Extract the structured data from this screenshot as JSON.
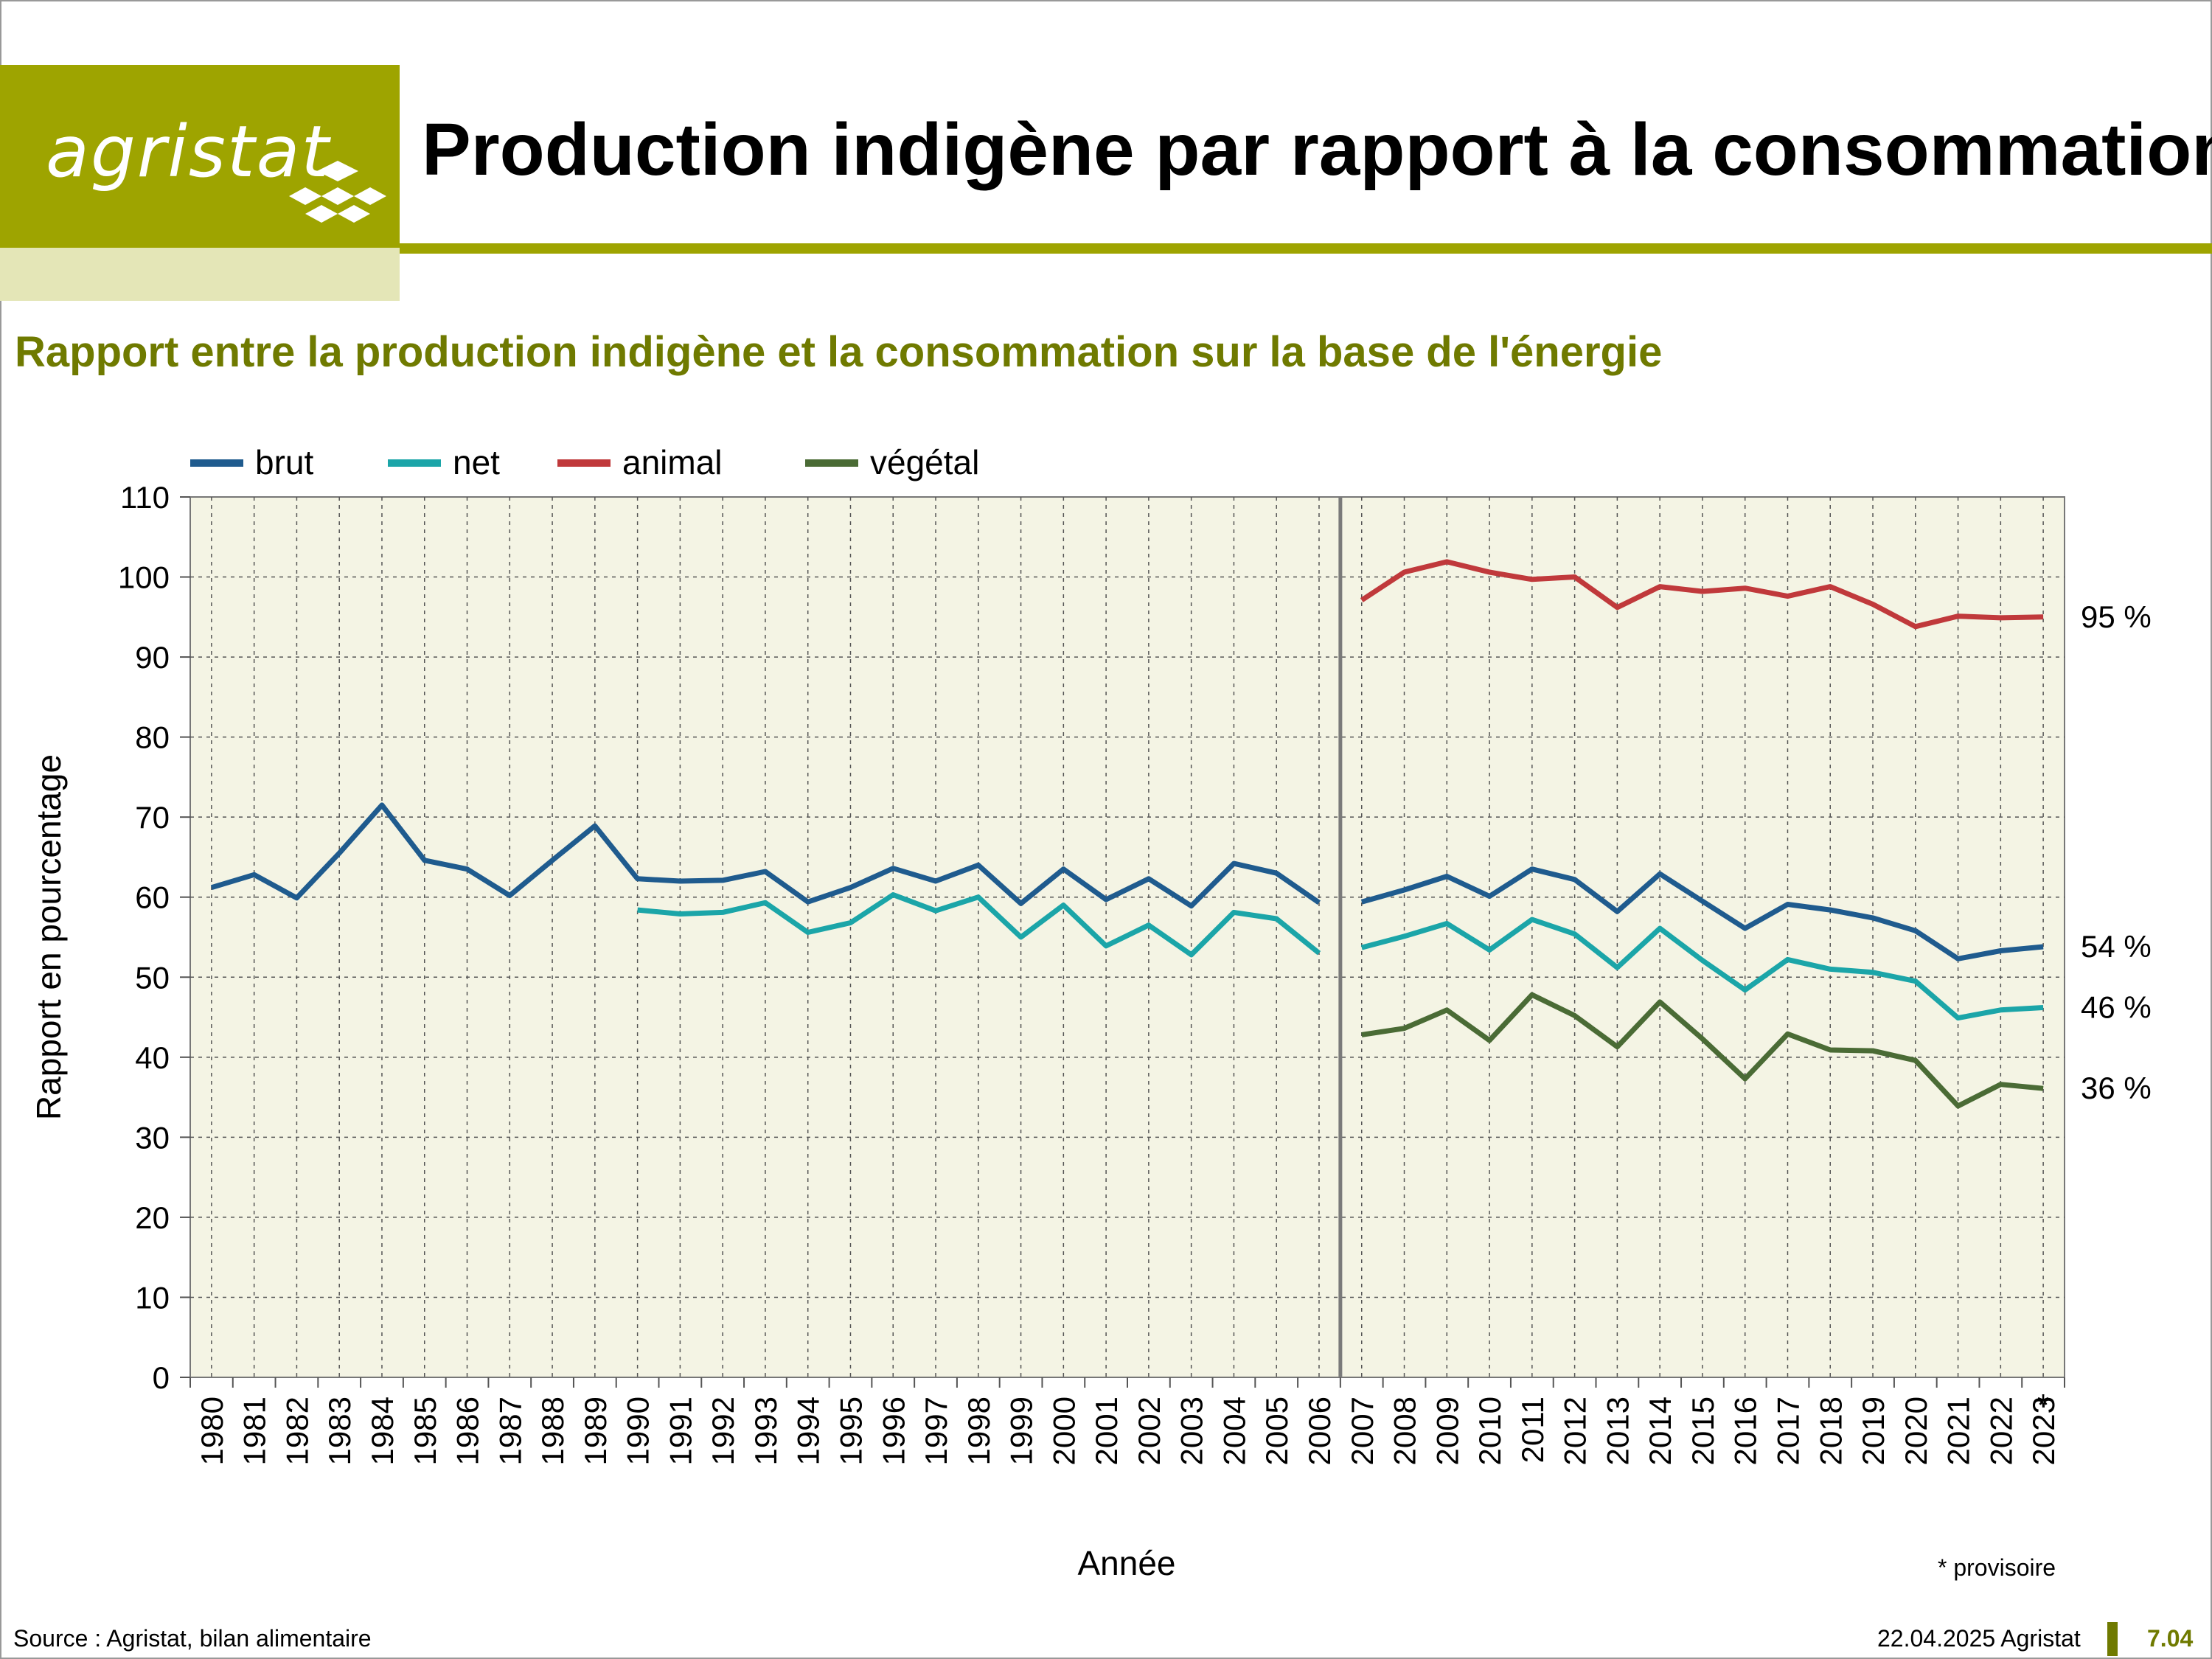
{
  "header": {
    "logo_text": "agristat",
    "title": "Production indigène par rapport à la consommation"
  },
  "chart_data": {
    "type": "line",
    "title": "Rapport entre la production indigène et la consommation sur la base de l'énergie",
    "xlabel": "Année",
    "ylabel": "Rapport en pourcentage",
    "ylim": [
      0,
      110
    ],
    "yticks": [
      0,
      10,
      20,
      30,
      40,
      50,
      60,
      70,
      80,
      90,
      100,
      110
    ],
    "grid": true,
    "legend_position": "top-left",
    "break_after": "2006",
    "categories": [
      "1980",
      "1981",
      "1982",
      "1983",
      "1984",
      "1985",
      "1986",
      "1987",
      "1988",
      "1989",
      "1990",
      "1991",
      "1992",
      "1993",
      "1994",
      "1995",
      "1996",
      "1997",
      "1998",
      "1999",
      "2000",
      "2001",
      "2002",
      "2003",
      "2004",
      "2005",
      "2006",
      "2007",
      "2008",
      "2009",
      "2010",
      "2011",
      "2012",
      "2013",
      "2014",
      "2015",
      "2016",
      "2017",
      "2018",
      "2019",
      "2020",
      "2021",
      "2022",
      "2023"
    ],
    "star_category": "2023",
    "star_symbol": "*",
    "series": [
      {
        "name": "brut",
        "color": "#1f5b8e",
        "values": [
          61.2,
          62.8,
          59.9,
          65.5,
          71.5,
          64.6,
          63.5,
          60.2,
          64.6,
          68.9,
          62.3,
          62.0,
          62.1,
          63.2,
          59.4,
          61.2,
          63.6,
          62.0,
          64.0,
          59.2,
          63.5,
          59.7,
          62.3,
          58.9,
          64.2,
          63.0,
          59.3,
          59.4,
          60.9,
          62.6,
          60.1,
          63.5,
          62.2,
          58.2,
          62.9,
          59.5,
          56.1,
          59.1,
          58.4,
          57.4,
          55.8,
          52.3,
          53.3,
          53.8
        ],
        "end_label": "54 %"
      },
      {
        "name": "net",
        "color": "#1ba5a8",
        "values": [
          null,
          null,
          null,
          null,
          null,
          null,
          null,
          null,
          null,
          null,
          58.4,
          57.9,
          58.1,
          59.3,
          55.6,
          56.8,
          60.3,
          58.3,
          60.0,
          55.0,
          59.0,
          53.9,
          56.5,
          52.8,
          58.1,
          57.3,
          53.0,
          53.7,
          55.1,
          56.7,
          53.4,
          57.2,
          55.4,
          51.2,
          56.1,
          52.1,
          48.4,
          52.2,
          51.0,
          50.6,
          49.5,
          44.9,
          45.9,
          46.2
        ],
        "end_label": "46 %"
      },
      {
        "name": "animal",
        "color": "#c0393b",
        "values": [
          null,
          null,
          null,
          null,
          null,
          null,
          null,
          null,
          null,
          null,
          null,
          null,
          null,
          null,
          null,
          null,
          null,
          null,
          null,
          null,
          null,
          null,
          null,
          null,
          null,
          null,
          null,
          97.1,
          100.6,
          101.9,
          100.6,
          99.7,
          100.0,
          96.2,
          98.8,
          98.2,
          98.6,
          97.6,
          98.8,
          96.6,
          93.8,
          95.1,
          94.9,
          95.0
        ],
        "end_label": "95 %"
      },
      {
        "name": "végétal",
        "color": "#4a6b35",
        "values": [
          null,
          null,
          null,
          null,
          null,
          null,
          null,
          null,
          null,
          null,
          null,
          null,
          null,
          null,
          null,
          null,
          null,
          null,
          null,
          null,
          null,
          null,
          null,
          null,
          null,
          null,
          null,
          42.8,
          43.6,
          45.9,
          42.1,
          47.8,
          45.2,
          41.3,
          46.9,
          42.3,
          37.3,
          42.9,
          40.9,
          40.8,
          39.6,
          33.9,
          36.6,
          36.1
        ],
        "end_label": "36 %"
      }
    ]
  },
  "notes": {
    "provisional": "* provisoire"
  },
  "footer": {
    "source": "Source : Agristat, bilan alimentaire",
    "date": "22.04.2025 Agristat",
    "page": "7.04"
  },
  "colors": {
    "brand_olive": "#9ea400",
    "brand_light": "#e4e6b7",
    "subtitle_text": "#6f7a00",
    "plot_background": "#f4f4e4"
  }
}
